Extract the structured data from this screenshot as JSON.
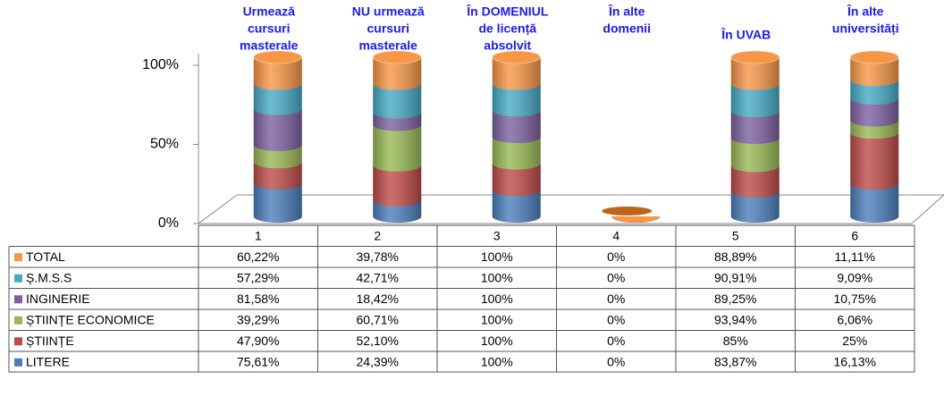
{
  "chart_data": {
    "type": "bar",
    "stacking": "percent",
    "categories": [
      "1",
      "2",
      "3",
      "4",
      "5",
      "6"
    ],
    "annotations": [
      [
        "Urmează",
        "cursuri",
        "masterale"
      ],
      [
        "NU urmează",
        "cursuri",
        "masterale"
      ],
      [
        "În DOMENIUL",
        "de licență",
        "absolvit"
      ],
      [
        "În alte",
        "domenii"
      ],
      [
        "În UVAB"
      ],
      [
        "În alte",
        "universități"
      ]
    ],
    "ylim": [
      0,
      100
    ],
    "yticks": [
      {
        "value": 0,
        "label": "0%"
      },
      {
        "value": 50,
        "label": "50%"
      },
      {
        "value": 100,
        "label": "100%"
      }
    ],
    "series": [
      {
        "name": "LITERE",
        "color": "#4a7ebb",
        "values": [
          75.61,
          24.39,
          100,
          0,
          83.87,
          16.13
        ],
        "value_labels": [
          "75,61%",
          "24,39%",
          "100%",
          "0%",
          "83,87%",
          "16,13%"
        ]
      },
      {
        "name": "ȘTIINȚE",
        "color": "#be4b48",
        "values": [
          47.9,
          52.1,
          100,
          0,
          85,
          25
        ],
        "value_labels": [
          "47,90%",
          "52,10%",
          "100%",
          "0%",
          "85%",
          "25%"
        ]
      },
      {
        "name": "ȘTIINȚE ECONOMICE",
        "color": "#98b954",
        "values": [
          39.29,
          60.71,
          100,
          0,
          93.94,
          6.06
        ],
        "value_labels": [
          "39,29%",
          "60,71%",
          "100%",
          "0%",
          "93,94%",
          "6,06%"
        ]
      },
      {
        "name": "INGINERIE",
        "color": "#7d60a0",
        "values": [
          81.58,
          18.42,
          100,
          0,
          89.25,
          10.75
        ],
        "value_labels": [
          "81,58%",
          "18,42%",
          "100%",
          "0%",
          "89,25%",
          "10,75%"
        ]
      },
      {
        "name": "Ș.M.S.S",
        "color": "#46aac5",
        "values": [
          57.29,
          42.71,
          100,
          0,
          90.91,
          9.09
        ],
        "value_labels": [
          "57,29%",
          "42,71%",
          "100%",
          "0%",
          "90,91%",
          "9,09%"
        ]
      },
      {
        "name": "TOTAL",
        "color": "#f79646",
        "values": [
          60.22,
          39.78,
          100,
          0,
          88.89,
          11.11
        ],
        "value_labels": [
          "60,22%",
          "39,78%",
          "100%",
          "0%",
          "88,89%",
          "11,11%"
        ]
      }
    ]
  }
}
